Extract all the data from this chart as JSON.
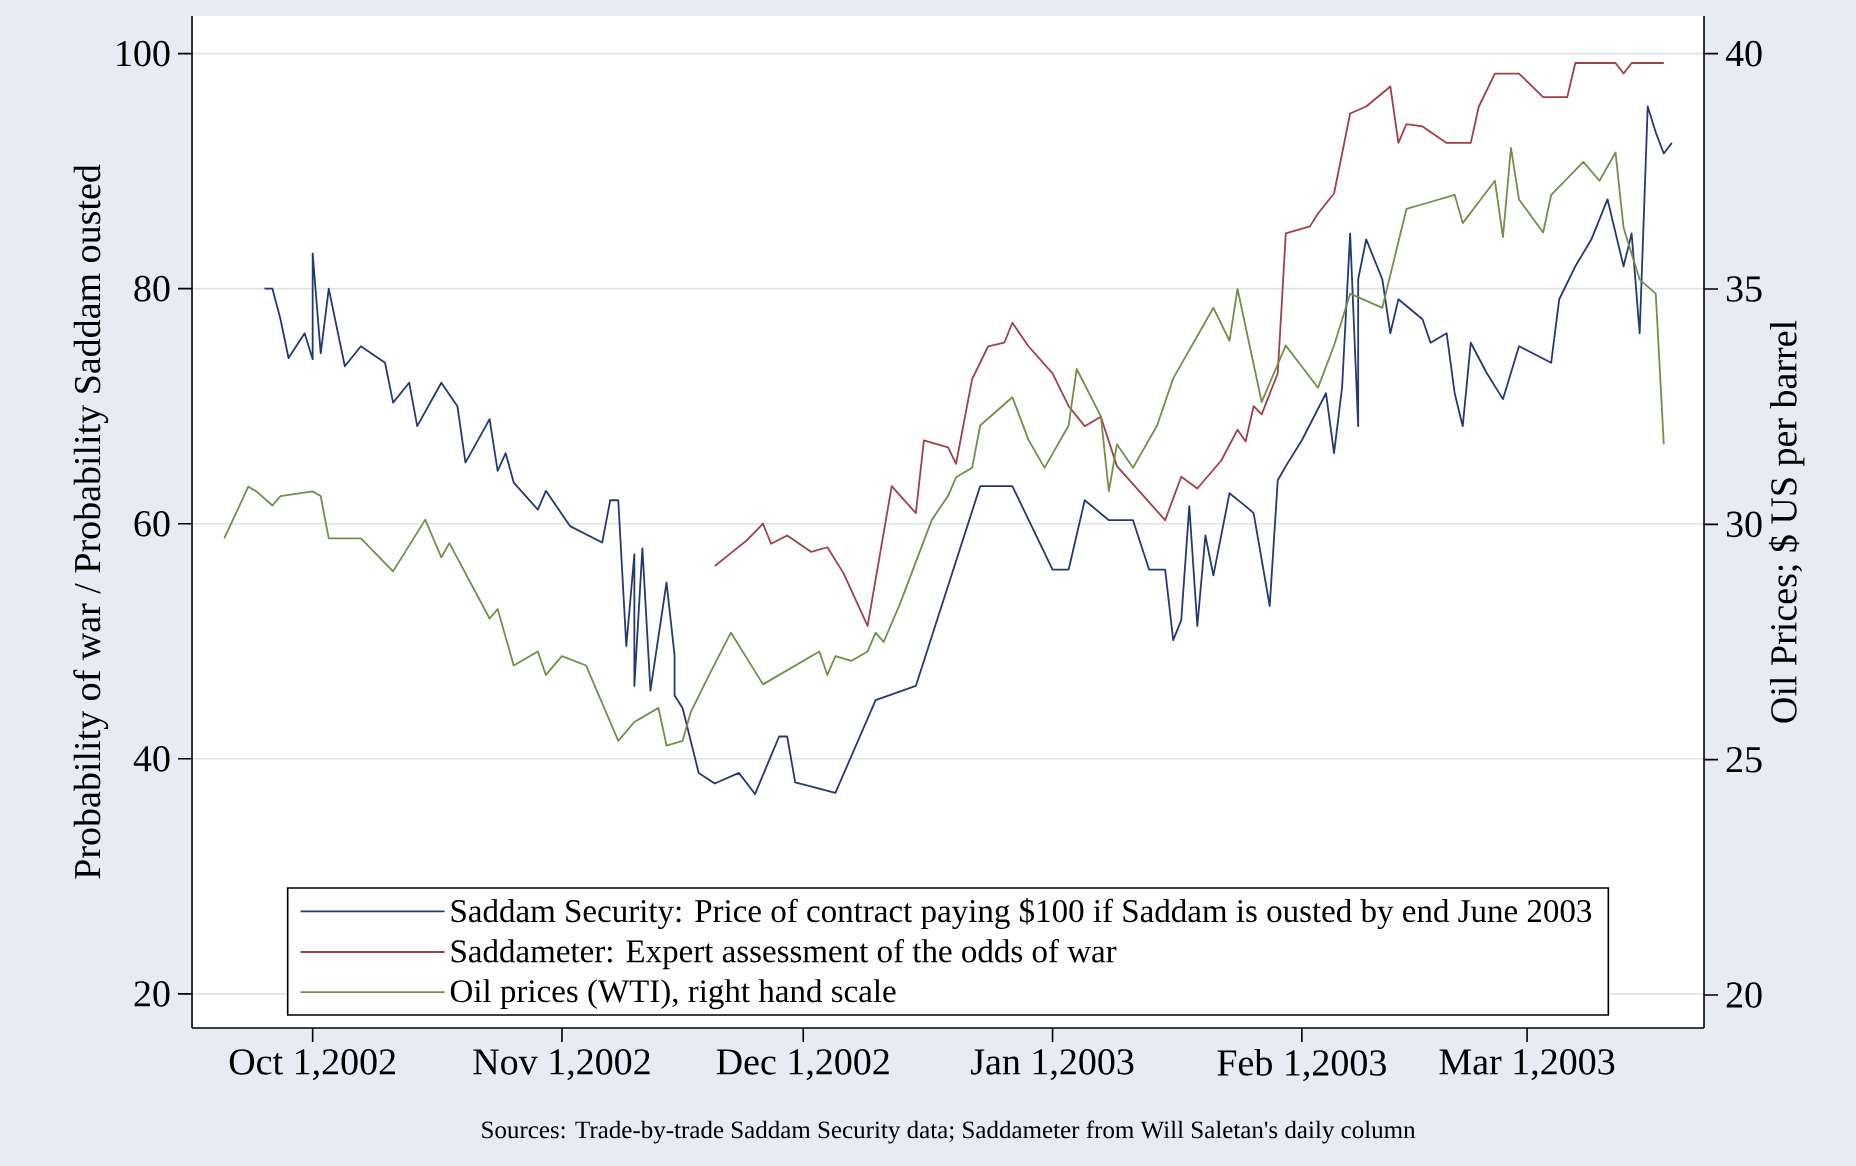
{
  "chart_data": {
    "type": "line",
    "ylabel": "Probability of war / Probability Saddam ousted",
    "y2label": "Oil Prices; $ US per barrel",
    "xlim": [
      "2002-09-16",
      "2003-03-23"
    ],
    "ylim": [
      17.1,
      103.2
    ],
    "y2lim": [
      19.3,
      40.8
    ],
    "xticks": [
      {
        "value": "2002-10-01",
        "label": "Oct 1,2002"
      },
      {
        "value": "2002-11-01",
        "label": "Nov 1,2002"
      },
      {
        "value": "2002-12-01",
        "label": "Dec 1,2002"
      },
      {
        "value": "2003-01-01",
        "label": "Jan 1,2003"
      },
      {
        "value": "2003-02-01",
        "label": "Feb 1,2003"
      },
      {
        "value": "2003-03-01",
        "label": "Mar 1,2003"
      }
    ],
    "yticks": [
      20,
      40,
      60,
      80,
      100
    ],
    "y2ticks": [
      20,
      25,
      30,
      35,
      40
    ],
    "grid": "y",
    "legend": "bottom",
    "annotations": [
      "Sources: Trade-by-trade Saddam Security data; Saddameter from Will Saletan's daily column"
    ],
    "series": [
      {
        "name": "Saddam Security: Price of contract paying $100 if Saddam is ousted by end June 2003",
        "color": "#243a73",
        "x": [
          "2002-09-25",
          "2002-09-26",
          "2002-09-27",
          "2002-09-28",
          "2002-09-30",
          "2002-10-01",
          "2002-10-01",
          "2002-10-02",
          "2002-10-03",
          "2002-10-05",
          "2002-10-07",
          "2002-10-10",
          "2002-10-11",
          "2002-10-13",
          "2002-10-14",
          "2002-10-17",
          "2002-10-19",
          "2002-10-20",
          "2002-10-23",
          "2002-10-24",
          "2002-10-25",
          "2002-10-26",
          "2002-10-29",
          "2002-10-30",
          "2002-11-02",
          "2002-11-06",
          "2002-11-07",
          "2002-11-08",
          "2002-11-09",
          "2002-11-10",
          "2002-11-10",
          "2002-11-11",
          "2002-11-12",
          "2002-11-14",
          "2002-11-15",
          "2002-11-15",
          "2002-11-16",
          "2002-11-18",
          "2002-11-20",
          "2002-11-23",
          "2002-11-25",
          "2002-11-28",
          "2002-11-29",
          "2002-11-30",
          "2002-12-05",
          "2002-12-10",
          "2002-12-15",
          "2002-12-23",
          "2002-12-27",
          "2003-01-01",
          "2003-01-03",
          "2003-01-05",
          "2003-01-08",
          "2003-01-11",
          "2003-01-13",
          "2003-01-15",
          "2003-01-16",
          "2003-01-17",
          "2003-01-18",
          "2003-01-19",
          "2003-01-20",
          "2003-01-21",
          "2003-01-23",
          "2003-01-25",
          "2003-01-26",
          "2003-01-28",
          "2003-01-29",
          "2003-01-30",
          "2003-02-01",
          "2003-02-04",
          "2003-02-05",
          "2003-02-06",
          "2003-02-07",
          "2003-02-08",
          "2003-02-08",
          "2003-02-09",
          "2003-02-11",
          "2003-02-12",
          "2003-02-13",
          "2003-02-16",
          "2003-02-17",
          "2003-02-19",
          "2003-02-20",
          "2003-02-21",
          "2003-02-22",
          "2003-02-24",
          "2003-02-26",
          "2003-02-28",
          "2003-03-04",
          "2003-03-05",
          "2003-03-07",
          "2003-03-09",
          "2003-03-11",
          "2003-03-13",
          "2003-03-14",
          "2003-03-15",
          "2003-03-16",
          "2003-03-17",
          "2003-03-18",
          "2003-03-19"
        ],
        "values": [
          80,
          80,
          77.4,
          74.1,
          76.2,
          74,
          83,
          74.5,
          80,
          73.4,
          75.1,
          73.7,
          70.3,
          72,
          68.3,
          72,
          70,
          65.2,
          68.9,
          64.5,
          66,
          63.5,
          61.2,
          62.8,
          59.8,
          58.4,
          62,
          62,
          49.6,
          57.4,
          46.2,
          57.9,
          45.8,
          55,
          48.8,
          45.4,
          44.3,
          38.8,
          37.9,
          38.8,
          37,
          41.9,
          41.9,
          38,
          37.1,
          45,
          46.2,
          63.2,
          63.2,
          56.1,
          56.1,
          62,
          60.3,
          60.3,
          56.1,
          56.1,
          50.1,
          51.8,
          61.5,
          51.3,
          59,
          55.6,
          62.6,
          61.5,
          60.9,
          53,
          63.7,
          64.9,
          67.1,
          71.1,
          66,
          71.6,
          84.7,
          68.3,
          80.8,
          84.2,
          80.8,
          76.2,
          79.1,
          77.4,
          75.4,
          76.2,
          71.1,
          68.3,
          75.4,
          72.8,
          70.6,
          75.1,
          73.7,
          79.1,
          81.9,
          84.2,
          87.6,
          81.9,
          84.7,
          76.2,
          95.5,
          93.3,
          91.5,
          92.4
        ]
      },
      {
        "name": "Saddameter: Expert assessment of the odds of war",
        "color": "#a0404a",
        "x": [
          "2002-11-20",
          "2002-11-22",
          "2002-11-24",
          "2002-11-26",
          "2002-11-27",
          "2002-11-29",
          "2002-12-02",
          "2002-12-04",
          "2002-12-06",
          "2002-12-09",
          "2002-12-12",
          "2002-12-15",
          "2002-12-16",
          "2002-12-19",
          "2002-12-20",
          "2002-12-22",
          "2002-12-24",
          "2002-12-26",
          "2002-12-27",
          "2002-12-29",
          "2003-01-01",
          "2003-01-03",
          "2003-01-05",
          "2003-01-07",
          "2003-01-09",
          "2003-01-15",
          "2003-01-17",
          "2003-01-19",
          "2003-01-22",
          "2003-01-24",
          "2003-01-25",
          "2003-01-26",
          "2003-01-27",
          "2003-01-29",
          "2003-01-30",
          "2003-02-02",
          "2003-02-03",
          "2003-02-05",
          "2003-02-07",
          "2003-02-09",
          "2003-02-12",
          "2003-02-13",
          "2003-02-14",
          "2003-02-16",
          "2003-02-19",
          "2003-02-22",
          "2003-02-23",
          "2003-02-25",
          "2003-02-28",
          "2003-03-03",
          "2003-03-06",
          "2003-03-07",
          "2003-03-12",
          "2003-03-13",
          "2003-03-14",
          "2003-03-18"
        ],
        "values": [
          56.4,
          57.5,
          58.6,
          60,
          58.3,
          59,
          57.6,
          58,
          55.8,
          51.3,
          63.2,
          60.9,
          67.1,
          66.5,
          65.1,
          72.3,
          75.1,
          75.4,
          77.1,
          75.1,
          72.8,
          70,
          68.3,
          69.1,
          64.9,
          60.3,
          64,
          63,
          65.4,
          68,
          67,
          70,
          69.3,
          72.8,
          84.7,
          85.3,
          86.4,
          88.1,
          94.9,
          95.5,
          97.2,
          92.4,
          94,
          93.8,
          92.4,
          92.4,
          95.5,
          98.3,
          98.3,
          96.3,
          96.3,
          99.2,
          99.2,
          98.3,
          99.2,
          99.2
        ]
      },
      {
        "name": "Oil prices (WTI), right hand scale",
        "color": "#72904a",
        "axis": "y2",
        "x": [
          "2002-09-20",
          "2002-09-23",
          "2002-09-24",
          "2002-09-26",
          "2002-09-27",
          "2002-10-01",
          "2002-10-02",
          "2002-10-03",
          "2002-10-07",
          "2002-10-11",
          "2002-10-15",
          "2002-10-17",
          "2002-10-18",
          "2002-10-23",
          "2002-10-24",
          "2002-10-26",
          "2002-10-29",
          "2002-10-30",
          "2002-11-01",
          "2002-11-04",
          "2002-11-08",
          "2002-11-10",
          "2002-11-13",
          "2002-11-14",
          "2002-11-16",
          "2002-11-17",
          "2002-11-19",
          "2002-11-22",
          "2002-11-26",
          "2002-12-03",
          "2002-12-04",
          "2002-12-05",
          "2002-12-07",
          "2002-12-09",
          "2002-12-10",
          "2002-12-11",
          "2002-12-13",
          "2002-12-17",
          "2002-12-19",
          "2002-12-20",
          "2002-12-22",
          "2002-12-23",
          "2002-12-27",
          "2002-12-29",
          "2002-12-31",
          "2003-01-03",
          "2003-01-04",
          "2003-01-07",
          "2003-01-08",
          "2003-01-09",
          "2003-01-11",
          "2003-01-14",
          "2003-01-16",
          "2003-01-21",
          "2003-01-23",
          "2003-01-24",
          "2003-01-27",
          "2003-01-30",
          "2003-02-03",
          "2003-02-05",
          "2003-02-07",
          "2003-02-11",
          "2003-02-14",
          "2003-02-16",
          "2003-02-20",
          "2003-02-21",
          "2003-02-25",
          "2003-02-26",
          "2003-02-27",
          "2003-02-28",
          "2003-03-03",
          "2003-03-04",
          "2003-03-08",
          "2003-03-10",
          "2003-03-12",
          "2003-03-13",
          "2003-03-15",
          "2003-03-17",
          "2003-03-18"
        ],
        "values": [
          29.7,
          30.8,
          30.7,
          30.4,
          30.6,
          30.7,
          30.6,
          29.7,
          29.7,
          29.0,
          30.1,
          29.3,
          29.6,
          28.0,
          28.2,
          27.0,
          27.3,
          26.8,
          27.2,
          27.0,
          25.4,
          25.8,
          26.1,
          25.3,
          25.4,
          26.0,
          26.7,
          27.7,
          26.6,
          27.3,
          26.8,
          27.2,
          27.1,
          27.3,
          27.7,
          27.5,
          28.3,
          30.1,
          30.6,
          31.0,
          31.2,
          32.1,
          32.7,
          31.8,
          31.2,
          32.1,
          33.3,
          32.3,
          30.7,
          31.7,
          31.2,
          32.1,
          33.1,
          34.6,
          33.9,
          35.0,
          32.6,
          33.8,
          32.9,
          33.8,
          34.9,
          34.6,
          36.7,
          36.8,
          37.0,
          36.4,
          37.3,
          36.1,
          38.0,
          36.9,
          36.2,
          37.0,
          37.7,
          37.3,
          37.9,
          36.3,
          35.2,
          34.9,
          31.7
        ]
      }
    ]
  }
}
